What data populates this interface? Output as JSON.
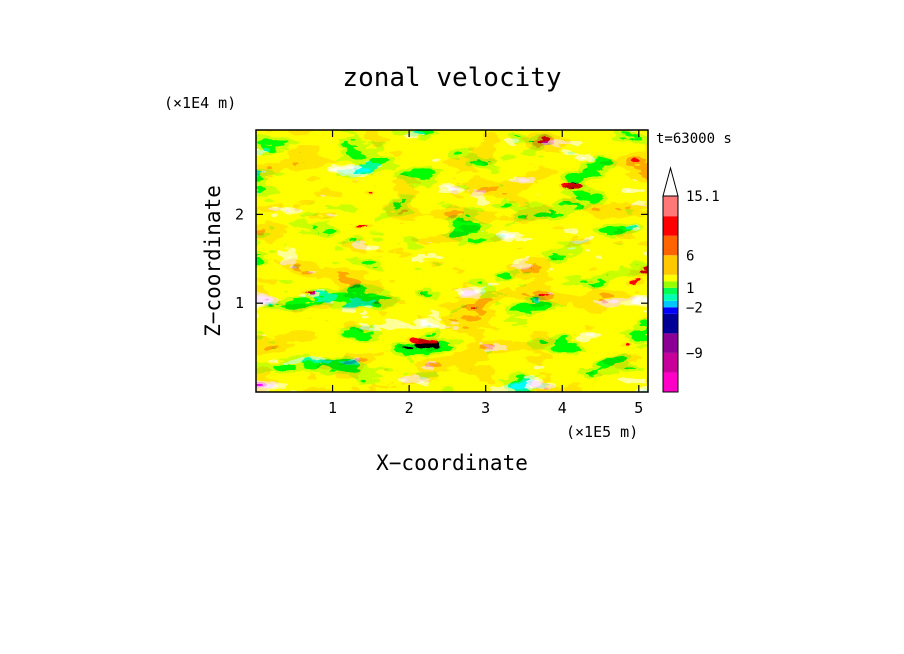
{
  "chart_data": {
    "type": "heatmap",
    "title": "zonal velocity",
    "xlabel": "X−coordinate",
    "ylabel": "Z−coordinate",
    "x_unit": "(×1E5 m)",
    "y_unit": "(×1E4 m)",
    "time_label": "t=63000 s",
    "xlim": [
      0,
      5.12
    ],
    "ylim": [
      0,
      2.95
    ],
    "x_ticks": [
      1,
      2,
      3,
      4,
      5
    ],
    "x_tick_labels": [
      "1",
      "2",
      "3",
      "4",
      "5"
    ],
    "y_ticks": [
      1,
      2
    ],
    "y_tick_labels": [
      "1",
      "2"
    ],
    "colorbar": {
      "levels": [
        -15,
        -12,
        -9,
        -6,
        -3,
        -2,
        -1,
        0,
        1,
        2,
        3,
        6,
        9,
        12,
        15.1
      ],
      "colors": [
        "#ff00c8",
        "#c8009b",
        "#8c0096",
        "#000096",
        "#0000ff",
        "#00c8ff",
        "#00ffb4",
        "#00ff50",
        "#96ff00",
        "#ffff00",
        "#ffc800",
        "#ff6400",
        "#ff0000",
        "#ff7878",
        "#ffc8c8"
      ],
      "extend_top_color": "#ffffff",
      "labels": [
        {
          "value": -9,
          "text": "−9"
        },
        {
          "value": -2,
          "text": "−2"
        },
        {
          "value": 1,
          "text": "1"
        },
        {
          "value": 6,
          "text": "6"
        },
        {
          "value": 15.1,
          "text": "15.1"
        }
      ]
    }
  }
}
